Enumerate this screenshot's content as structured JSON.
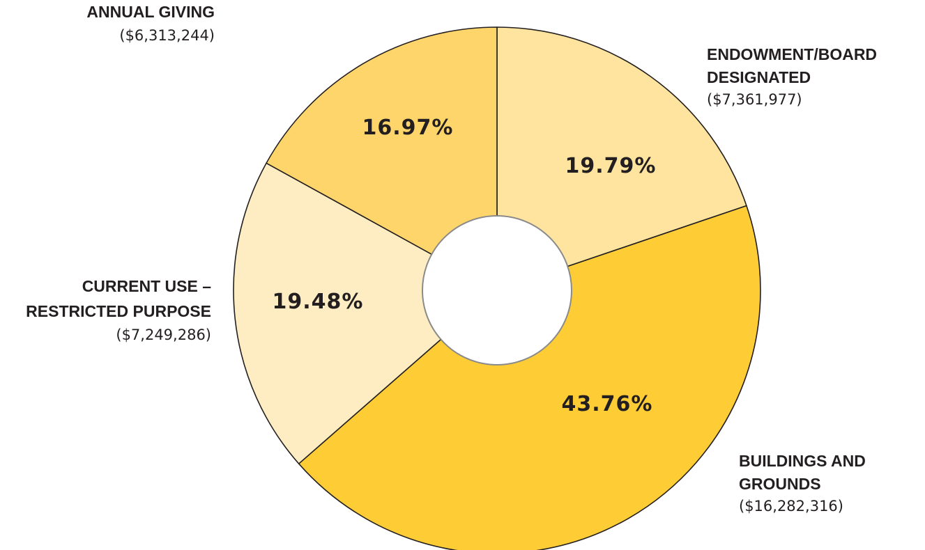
{
  "chart_data": {
    "type": "pie",
    "hole": true,
    "slices": [
      {
        "label_lines": [
          "ENDOWMENT/BOARD",
          "DESIGNATED"
        ],
        "amount": "($7,361,977)",
        "percent_label": "19.79%",
        "value": 19.79,
        "color": "#fee49e"
      },
      {
        "label_lines": [
          "BUILDINGS AND",
          "GROUNDS"
        ],
        "amount": "($16,282,316)",
        "percent_label": "43.76%",
        "value": 43.76,
        "color": "#fecd35"
      },
      {
        "label_lines": [
          "CURRENT USE –",
          "RESTRICTED PURPOSE"
        ],
        "amount": "($7,249,286)",
        "percent_label": "19.48%",
        "value": 19.48,
        "color": "#feedc2"
      },
      {
        "label_lines": [
          "ANNUAL GIVING"
        ],
        "amount": "($6,313,244)",
        "percent_label": "16.97%",
        "value": 16.97,
        "color": "#fed56a"
      }
    ],
    "colors": {
      "stroke": "#231f20",
      "hole_stroke": "#8a8a8a",
      "text": "#231f20"
    }
  }
}
